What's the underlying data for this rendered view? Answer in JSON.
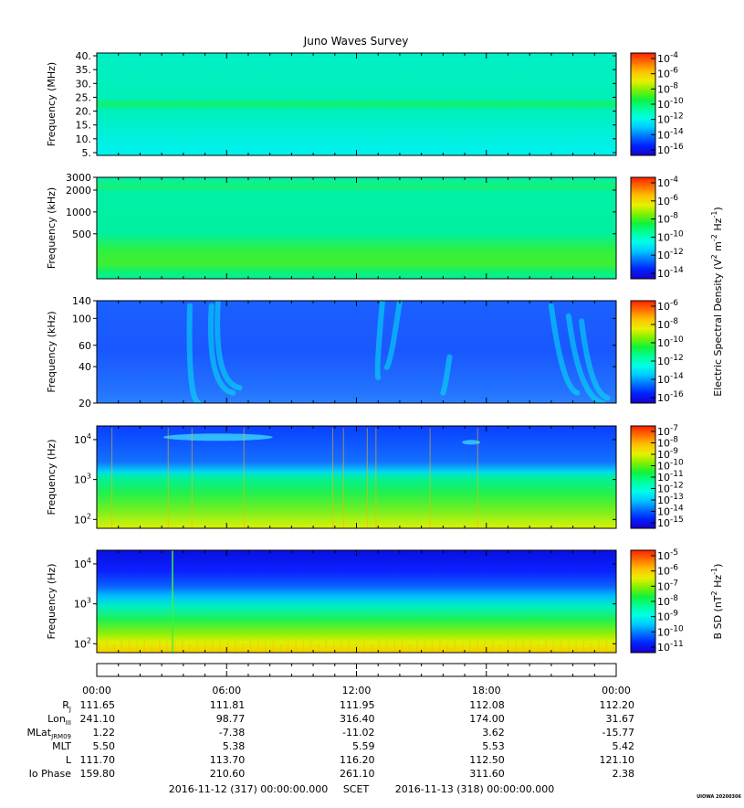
{
  "title": "Juno Waves Survey",
  "credit": "UIOWA 20200306",
  "chart_data": [
    {
      "type": "heatmap",
      "ylabel": "Frequency (MHz)",
      "yscale": "linear",
      "ylim": [
        4,
        41
      ],
      "yticks": [
        {
          "value": 5,
          "label": "5."
        },
        {
          "value": 10,
          "label": "10."
        },
        {
          "value": 15,
          "label": "15."
        },
        {
          "value": 20,
          "label": "20."
        },
        {
          "value": 25,
          "label": "25."
        },
        {
          "value": 30,
          "label": "30."
        },
        {
          "value": 35,
          "label": "35."
        },
        {
          "value": 40,
          "label": "40."
        }
      ],
      "colorbar": {
        "ticks": [
          {
            "base": "10",
            "exp": "-4"
          },
          {
            "base": "10",
            "exp": "-6"
          },
          {
            "base": "10",
            "exp": "-8"
          },
          {
            "base": "10",
            "exp": "-10"
          },
          {
            "base": "10",
            "exp": "-12"
          },
          {
            "base": "10",
            "exp": "-14"
          },
          {
            "base": "10",
            "exp": "-16"
          }
        ]
      },
      "features": "uniform cyan background with a narrow green emission band near 21 MHz"
    },
    {
      "type": "heatmap",
      "ylabel": "Frequency (kHz)",
      "yscale": "log",
      "ylim": [
        120,
        3000
      ],
      "yticks": [
        {
          "value": 500,
          "label": "500"
        },
        {
          "value": 1000,
          "label": "1000"
        },
        {
          "value": 2000,
          "label": "2000"
        },
        {
          "value": 3000,
          "label": "3000"
        }
      ],
      "colorbar": {
        "ticks": [
          {
            "base": "10",
            "exp": "-4"
          },
          {
            "base": "10",
            "exp": "-6"
          },
          {
            "base": "10",
            "exp": "-8"
          },
          {
            "base": "10",
            "exp": "-10"
          },
          {
            "base": "10",
            "exp": "-12"
          },
          {
            "base": "10",
            "exp": "-14"
          }
        ]
      },
      "features": "cyan background, green band near 2000 kHz, broad green emission below ~300 kHz"
    },
    {
      "type": "heatmap",
      "ylabel": "Frequency (kHz)",
      "yscale": "log",
      "ylim": [
        20,
        140
      ],
      "yticks": [
        {
          "value": 20,
          "label": "20"
        },
        {
          "value": 40,
          "label": "40"
        },
        {
          "value": 60,
          "label": "60"
        },
        {
          "value": 100,
          "label": "100"
        },
        {
          "value": 140,
          "label": "140"
        }
      ],
      "colorbar": {
        "ticks": [
          {
            "base": "10",
            "exp": "-6"
          },
          {
            "base": "10",
            "exp": "-8"
          },
          {
            "base": "10",
            "exp": "-10"
          },
          {
            "base": "10",
            "exp": "-12"
          },
          {
            "base": "10",
            "exp": "-14"
          },
          {
            "base": "10",
            "exp": "-16"
          }
        ]
      },
      "features": "blue background with cyan drifting arc emissions near 04:30-06:30, 11:00-13:00 and 21:00-23:30"
    },
    {
      "type": "heatmap",
      "ylabel": "Frequency (Hz)",
      "yscale": "log",
      "ylim": [
        60,
        22000
      ],
      "yticks": [
        {
          "value": 100,
          "base": "10",
          "exp": "2"
        },
        {
          "value": 1000,
          "base": "10",
          "exp": "3"
        },
        {
          "value": 10000,
          "base": "10",
          "exp": "4"
        }
      ],
      "colorbar": {
        "ticks": [
          {
            "base": "10",
            "exp": "-7"
          },
          {
            "base": "10",
            "exp": "-8"
          },
          {
            "base": "10",
            "exp": "-9"
          },
          {
            "base": "10",
            "exp": "-10"
          },
          {
            "base": "10",
            "exp": "-11"
          },
          {
            "base": "10",
            "exp": "-12"
          },
          {
            "base": "10",
            "exp": "-13"
          },
          {
            "base": "10",
            "exp": "-14"
          },
          {
            "base": "10",
            "exp": "-15"
          }
        ]
      },
      "features": "blue above ~1 kHz with cyan emission near 8 kHz around 04:00-08:00, green/yellow below 1 kHz, vertical spikes"
    },
    {
      "type": "heatmap",
      "ylabel": "Frequency (Hz)",
      "yscale": "log",
      "ylim": [
        60,
        22000
      ],
      "yticks": [
        {
          "value": 100,
          "base": "10",
          "exp": "2"
        },
        {
          "value": 1000,
          "base": "10",
          "exp": "3"
        },
        {
          "value": 10000,
          "base": "10",
          "exp": "4"
        }
      ],
      "colorbar": {
        "ticks": [
          {
            "base": "10",
            "exp": "-5"
          },
          {
            "base": "10",
            "exp": "-6"
          },
          {
            "base": "10",
            "exp": "-7"
          },
          {
            "base": "10",
            "exp": "-8"
          },
          {
            "base": "10",
            "exp": "-9"
          },
          {
            "base": "10",
            "exp": "-10"
          },
          {
            "base": "10",
            "exp": "-11"
          }
        ]
      },
      "features": "dark blue above ~5 kHz, cyan/green mid, yellow/orange spiky emission below ~200 Hz"
    }
  ],
  "colorbar_labels": {
    "electric": {
      "a": "Electric Spectral Density (V",
      "b": "2",
      "c": " m",
      "d": "-2",
      "e": " Hz",
      "f": "-1",
      "g": ")"
    },
    "magnetic": {
      "a": "B SD (nT",
      "b": "2",
      "c": " Hz",
      "d": "-1",
      "e": ")"
    }
  },
  "time_axis": {
    "labels": [
      "00:00",
      "06:00",
      "12:00",
      "18:00",
      "00:00"
    ],
    "rows": [
      {
        "label": "R",
        "sub": "J",
        "values": [
          "111.65",
          "111.81",
          "111.95",
          "112.08",
          "112.20"
        ]
      },
      {
        "label": "Lon",
        "sub": "III",
        "values": [
          "241.10",
          "98.77",
          "316.40",
          "174.00",
          "31.67"
        ]
      },
      {
        "label": "MLat",
        "sub": "JRM09",
        "values": [
          "1.22",
          "-7.38",
          "-11.02",
          "3.62",
          "-15.77"
        ]
      },
      {
        "label": "MLT",
        "sub": "",
        "values": [
          "5.50",
          "5.38",
          "5.59",
          "5.53",
          "5.42"
        ]
      },
      {
        "label": "L",
        "sub": "",
        "values": [
          "111.70",
          "113.70",
          "116.20",
          "112.50",
          "121.10"
        ]
      },
      {
        "label": "Io Phase",
        "sub": "",
        "values": [
          "159.80",
          "210.60",
          "261.10",
          "311.60",
          "2.38"
        ]
      }
    ],
    "start": "2016-11-12 (317) 00:00:00.000",
    "scet": "SCET",
    "end": "2016-11-13 (318) 00:00:00.000"
  },
  "colors": {
    "colormap": [
      "#1a00c8",
      "#0020ff",
      "#0070ff",
      "#00c8ff",
      "#00ffe6",
      "#00ff9a",
      "#10f23c",
      "#7ff000",
      "#e8f000",
      "#ffc000",
      "#ff7000",
      "#ff2000"
    ]
  }
}
